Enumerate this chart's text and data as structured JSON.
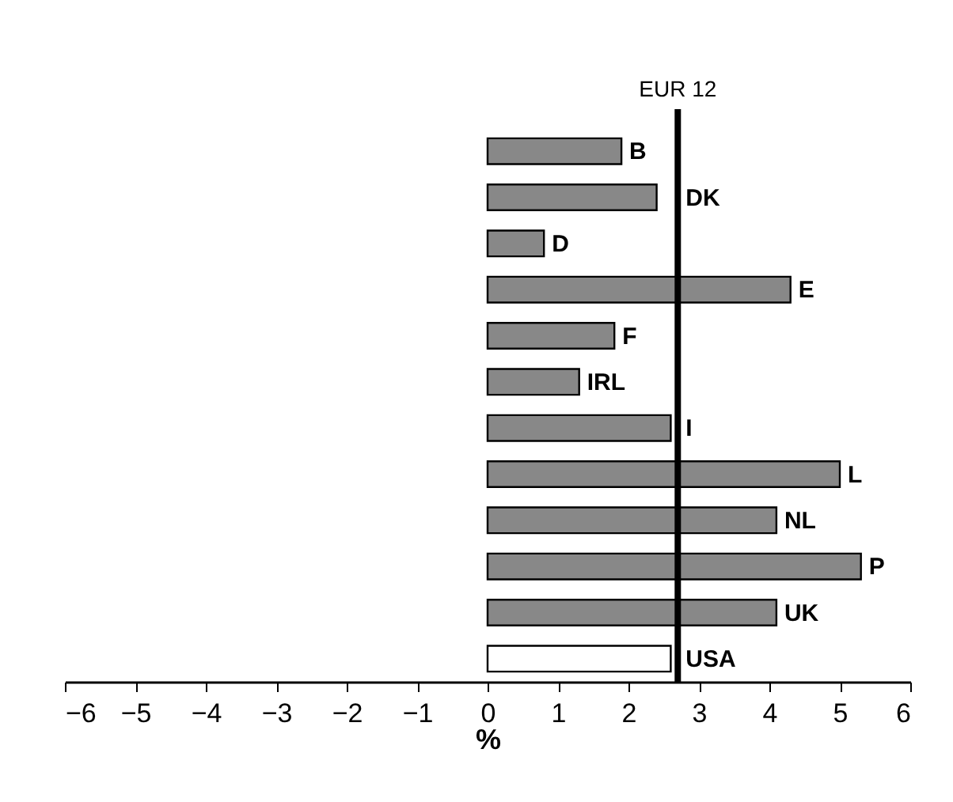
{
  "chart_data": {
    "type": "bar",
    "orientation": "horizontal",
    "xlabel": "%",
    "categories": [
      "B",
      "DK",
      "D",
      "E",
      "F",
      "IRL",
      "I",
      "L",
      "NL",
      "P",
      "UK",
      "USA"
    ],
    "values": [
      1.9,
      2.4,
      0.8,
      4.3,
      1.8,
      1.3,
      2.6,
      5.0,
      4.1,
      5.3,
      4.1,
      2.6
    ],
    "colors": [
      "#888888",
      "#888888",
      "#888888",
      "#888888",
      "#888888",
      "#888888",
      "#888888",
      "#888888",
      "#888888",
      "#888888",
      "#888888",
      "#ffffff"
    ],
    "xlim": [
      -6,
      6
    ],
    "xticks": [
      -6,
      -5,
      -4,
      -3,
      -2,
      -1,
      0,
      1,
      2,
      3,
      4,
      5,
      6
    ],
    "ref_lines": [
      {
        "axis": "x",
        "value": 2.7,
        "label": "EUR 12",
        "color": "#000000"
      }
    ],
    "grid": false
  }
}
